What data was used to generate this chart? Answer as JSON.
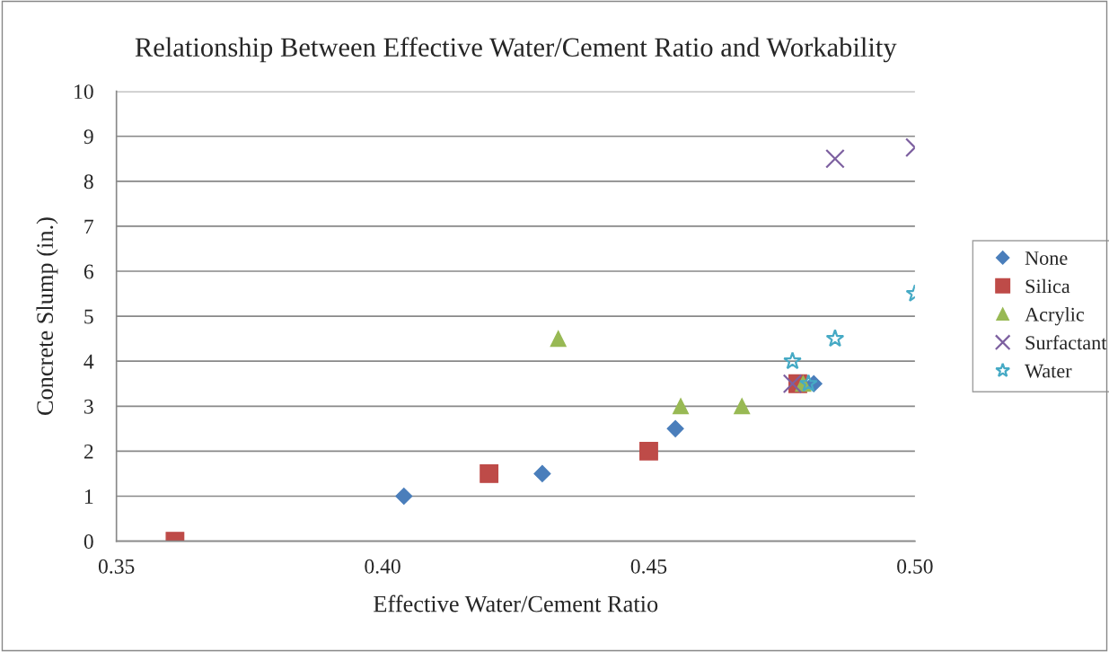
{
  "chart_data": {
    "type": "scatter",
    "title": "Relationship Between Effective Water/Cement Ratio and Workability",
    "xlabel": "Effective Water/Cement Ratio",
    "ylabel": "Concrete Slump (in.)",
    "xlim": [
      0.35,
      0.5
    ],
    "xticks": [
      {
        "value": 0.35,
        "label": "0.35"
      },
      {
        "value": 0.4,
        "label": "0.40"
      },
      {
        "value": 0.45,
        "label": "0.45"
      },
      {
        "value": 0.5,
        "label": "0.50"
      }
    ],
    "ylim": [
      0,
      10
    ],
    "yticks": [
      0,
      1,
      2,
      3,
      4,
      5,
      6,
      7,
      8,
      9,
      10
    ],
    "grid": "y",
    "legend": "right",
    "series": [
      {
        "name": "None",
        "color": "#4a7ebb",
        "marker": "diamond",
        "x": [
          0.404,
          0.43,
          0.455,
          0.481
        ],
        "values": [
          1,
          1.5,
          2.5,
          3.5
        ]
      },
      {
        "name": "Silica",
        "color": "#be4b48",
        "marker": "square",
        "x": [
          0.361,
          0.42,
          0.45,
          0.478
        ],
        "values": [
          0,
          1.5,
          2,
          3.5
        ]
      },
      {
        "name": "Acrylic",
        "color": "#98b954",
        "marker": "triangle",
        "x": [
          0.433,
          0.456,
          0.4675,
          0.479
        ],
        "values": [
          4.5,
          3,
          3,
          3.5
        ]
      },
      {
        "name": "Surfactant",
        "color": "#7d60a0",
        "marker": "cross",
        "x": [
          0.477,
          0.485,
          0.5
        ],
        "values": [
          3.5,
          8.5,
          8.75
        ]
      },
      {
        "name": "Water",
        "color": "#46aac5",
        "marker": "star",
        "x": [
          0.477,
          0.48,
          0.485,
          0.5
        ],
        "values": [
          4,
          3.5,
          4.5,
          5.5
        ]
      }
    ]
  }
}
